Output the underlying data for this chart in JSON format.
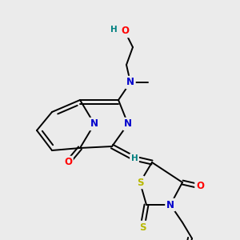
{
  "bg_color": "#ebebeb",
  "atom_colors": {
    "C": "#000000",
    "N": "#0000cc",
    "O": "#ff0000",
    "S": "#b8b800",
    "H": "#008080"
  },
  "bond_color": "#000000",
  "bond_width": 1.4,
  "doff": 0.06,
  "fs": 8.5
}
